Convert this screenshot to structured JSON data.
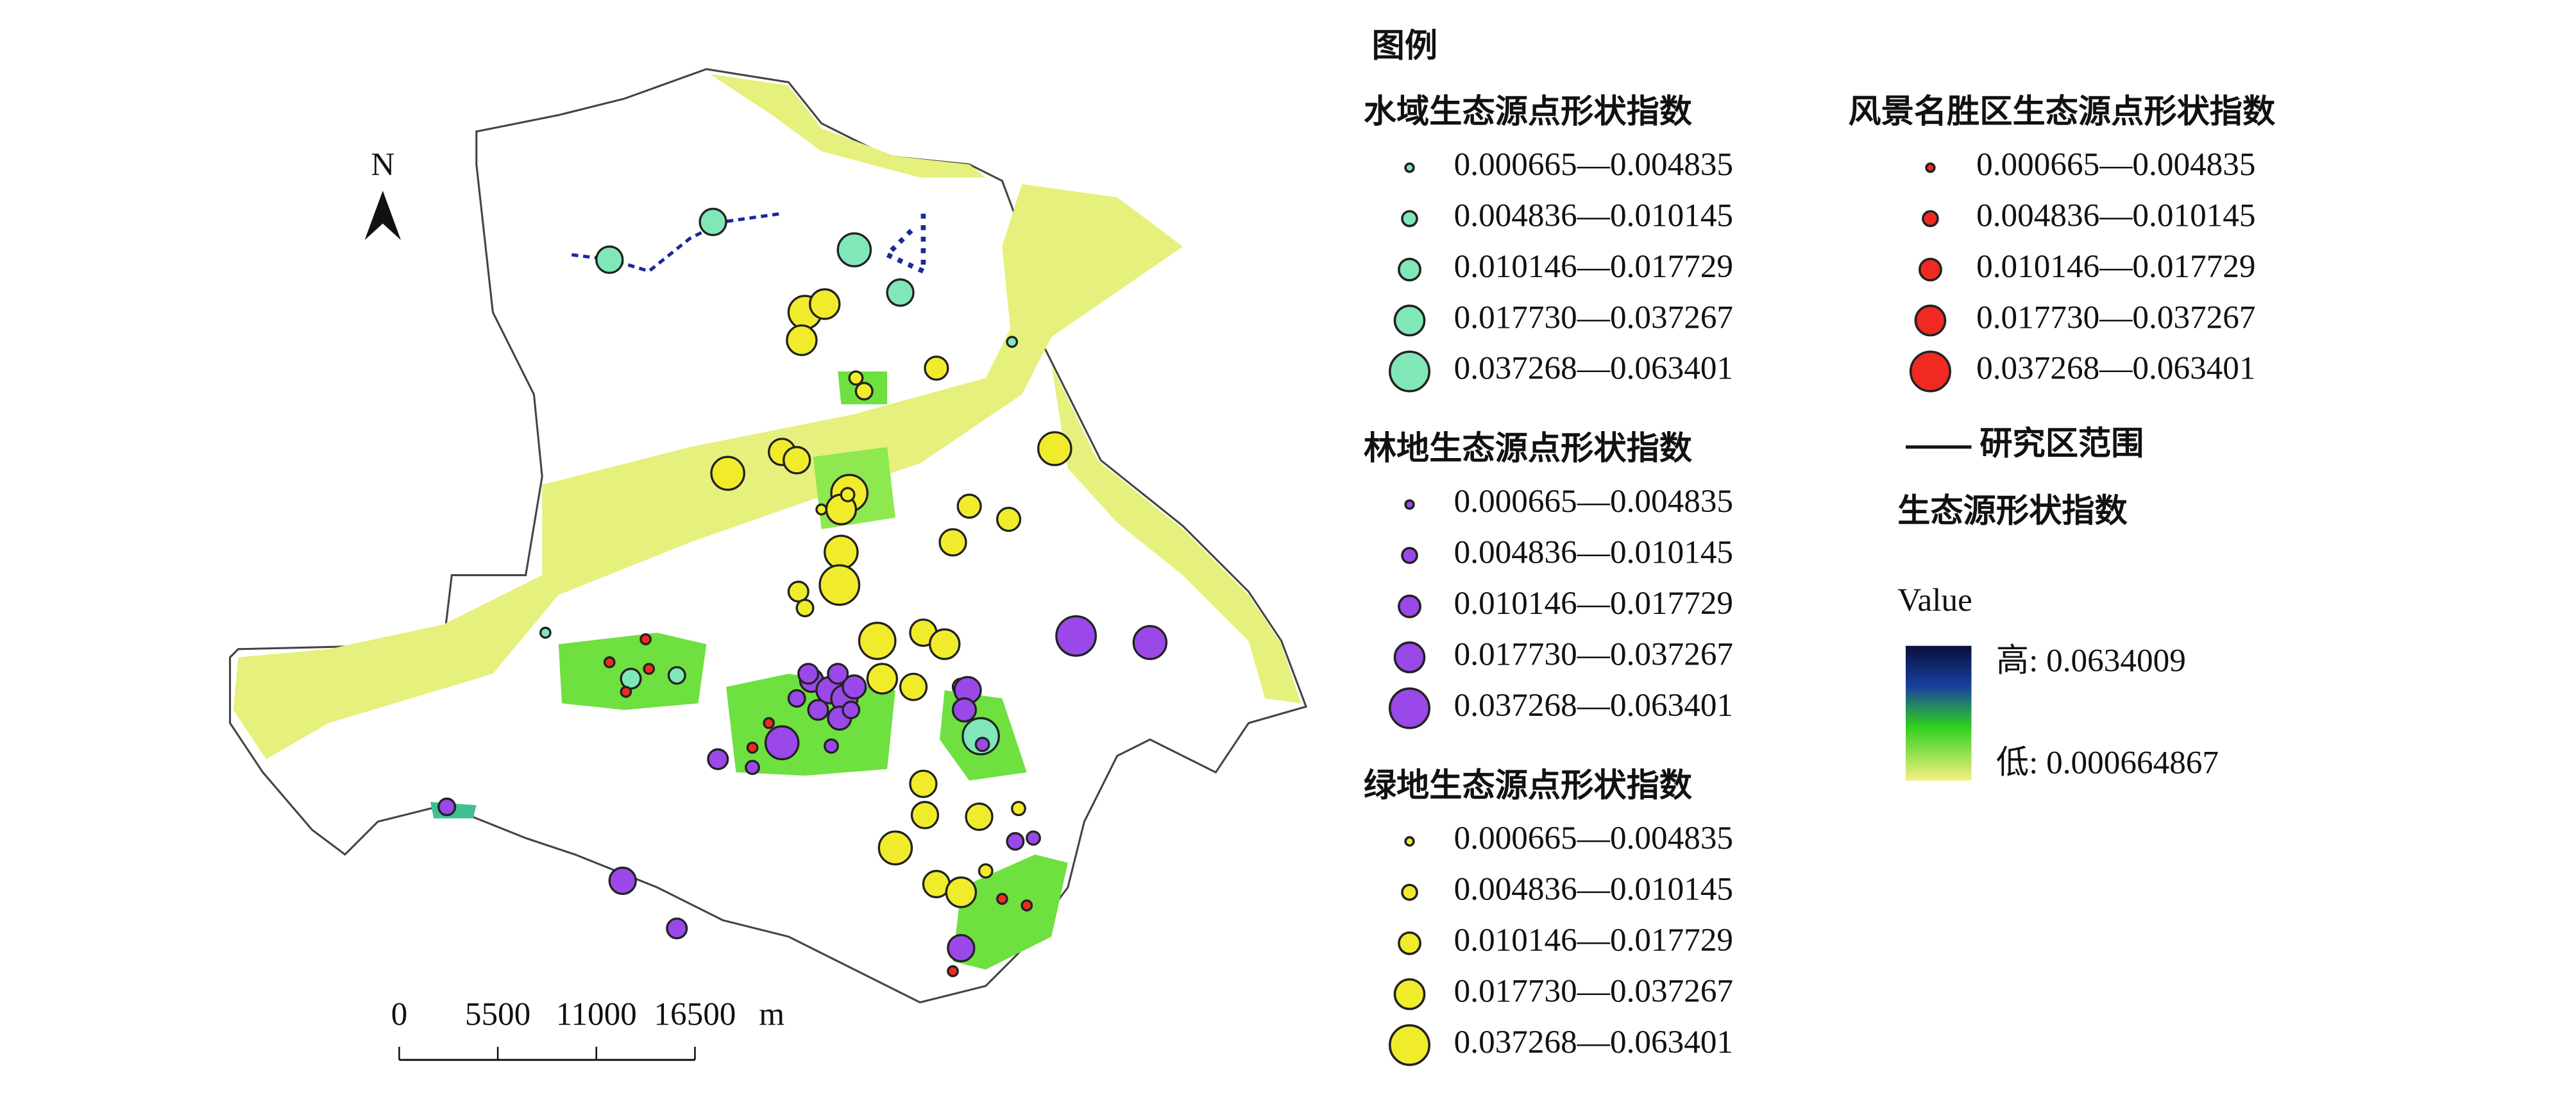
{
  "north_label": "N",
  "legend": {
    "title": "图例",
    "groups": [
      {
        "title": "水域生态源点形状指数",
        "color": "#80e8b8",
        "classes": [
          "0.000665—0.004835",
          "0.004836—0.010145",
          "0.010146—0.017729",
          "0.017730—0.037267",
          "0.037268—0.063401"
        ]
      },
      {
        "title": "林地生态源点形状指数",
        "color": "#9a48e8",
        "classes": [
          "0.000665—0.004835",
          "0.004836—0.010145",
          "0.010146—0.017729",
          "0.017730—0.037267",
          "0.037268—0.063401"
        ]
      },
      {
        "title": "绿地生态源点形状指数",
        "color": "#f0ec2c",
        "classes": [
          "0.000665—0.004835",
          "0.004836—0.010145",
          "0.010146—0.017729",
          "0.017730—0.037267",
          "0.037268—0.063401"
        ]
      },
      {
        "title": "风景名胜区生态源点形状指数",
        "color": "#f02a20",
        "classes": [
          "0.000665—0.004835",
          "0.004836—0.010145",
          "0.010146—0.017729",
          "0.017730—0.037267",
          "0.037268—0.063401"
        ]
      }
    ],
    "boundary": "研究区范围",
    "raster": {
      "title": "生态源形状指数",
      "field": "Value",
      "high": "高: 0.0634009",
      "low": "低: 0.000664867"
    }
  },
  "scale_bar": {
    "labels": [
      "0",
      "5500",
      "11000",
      "16500"
    ],
    "unit": "m"
  }
}
